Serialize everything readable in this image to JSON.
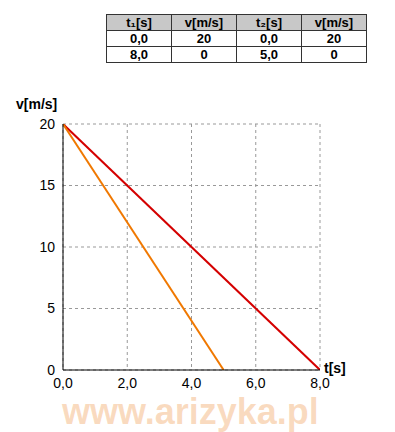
{
  "table": {
    "header": [
      "t₁[s]",
      "v[m/s]",
      "t₂[s]",
      "v[m/s]"
    ],
    "rows": [
      [
        "0,0",
        "20",
        "0,0",
        "20"
      ],
      [
        "8,0",
        "0",
        "5,0",
        "0"
      ]
    ]
  },
  "chart_data": {
    "type": "line",
    "x_label": "t[s]",
    "y_label": "v[m/s]",
    "series": [
      {
        "color": "#d40000",
        "x": [
          0,
          8
        ],
        "values": [
          20,
          0
        ]
      },
      {
        "color": "#f07800",
        "x": [
          0,
          5
        ],
        "values": [
          20,
          0
        ]
      }
    ],
    "xlim": [
      0,
      8
    ],
    "ylim": [
      0,
      20
    ],
    "xticks": [
      {
        "value": 0,
        "label": "0,0"
      },
      {
        "value": 2,
        "label": "2,0"
      },
      {
        "value": 4,
        "label": "4,0"
      },
      {
        "value": 6,
        "label": "6,0"
      },
      {
        "value": 8,
        "label": "8,0"
      }
    ],
    "yticks": [
      0,
      5,
      10,
      15,
      20
    ],
    "grid": true,
    "annotations": [
      "www.arizyka.pl"
    ]
  }
}
